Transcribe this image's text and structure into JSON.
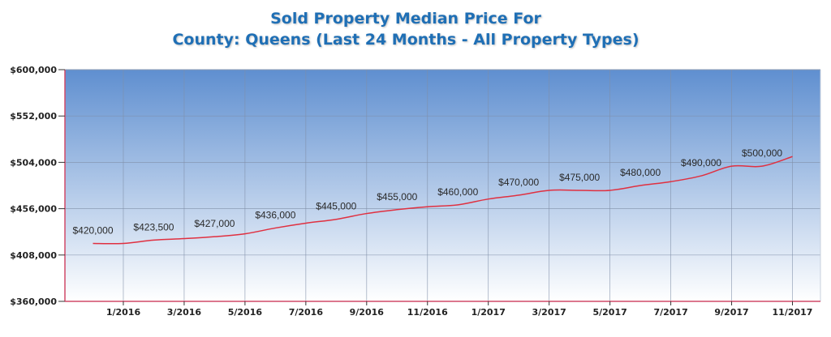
{
  "title": {
    "line1": "Sold Property Median Price For",
    "line2": "County: Queens (Last 24 Months - All Property Types)"
  },
  "colors": {
    "title": "#1f6fb5",
    "line": "#e03040",
    "axis": "#d04a68",
    "grid": "#7f8fa8",
    "bg_top": "#5f8fd0",
    "bg_bottom": "#ffffff"
  },
  "chart_data": {
    "type": "line",
    "title": "Sold Property Median Price For County: Queens (Last 24 Months - All Property Types)",
    "xlabel": "",
    "ylabel": "",
    "ylim": [
      360000,
      600000
    ],
    "grid": true,
    "legend": null,
    "y_ticks": [
      "$360,000",
      "$408,000",
      "$456,000",
      "$504,000",
      "$552,000",
      "$600,000"
    ],
    "y_tick_values": [
      360000,
      408000,
      456000,
      504000,
      552000,
      600000
    ],
    "x_ticks": [
      "1/2016",
      "3/2016",
      "5/2016",
      "7/2016",
      "9/2016",
      "11/2016",
      "1/2017",
      "3/2017",
      "5/2017",
      "7/2017",
      "9/2017",
      "11/2017"
    ],
    "x": [
      "12/2015",
      "1/2016",
      "2/2016",
      "3/2016",
      "4/2016",
      "5/2016",
      "6/2016",
      "7/2016",
      "8/2016",
      "9/2016",
      "10/2016",
      "11/2016",
      "12/2016",
      "1/2017",
      "2/2017",
      "3/2017",
      "4/2017",
      "5/2017",
      "6/2017",
      "7/2017",
      "8/2017",
      "9/2017",
      "10/2017",
      "11/2017"
    ],
    "series": [
      {
        "name": "Median Price",
        "values": [
          420000,
          420000,
          423500,
          425000,
          427000,
          430000,
          436000,
          441000,
          445000,
          451000,
          455000,
          458000,
          460000,
          466000,
          470000,
          475000,
          475000,
          475000,
          480000,
          484000,
          490000,
          500000,
          500000,
          510000
        ]
      }
    ],
    "data_labels": [
      {
        "x": "12/2015",
        "text": "$420,000"
      },
      {
        "x": "2/2016",
        "text": "$423,500"
      },
      {
        "x": "4/2016",
        "text": "$427,000"
      },
      {
        "x": "6/2016",
        "text": "$436,000"
      },
      {
        "x": "8/2016",
        "text": "$445,000"
      },
      {
        "x": "10/2016",
        "text": "$455,000"
      },
      {
        "x": "12/2016",
        "text": "$460,000"
      },
      {
        "x": "2/2017",
        "text": "$470,000"
      },
      {
        "x": "4/2017",
        "text": "$475,000"
      },
      {
        "x": "6/2017",
        "text": "$480,000"
      },
      {
        "x": "8/2017",
        "text": "$490,000"
      },
      {
        "x": "10/2017",
        "text": "$500,000"
      }
    ]
  }
}
